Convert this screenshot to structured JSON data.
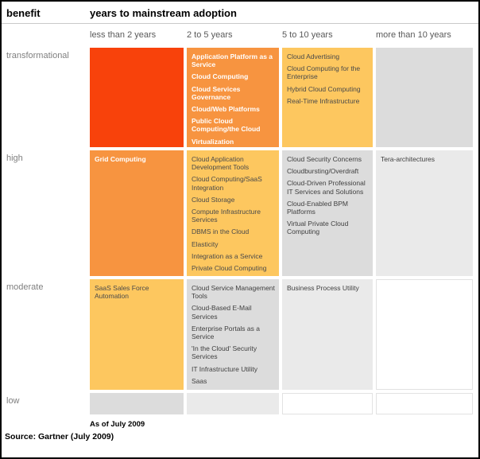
{
  "header": {
    "benefit_label": "benefit",
    "title": "years to mainstream adoption"
  },
  "footer": {
    "as_of": "As of July 2009",
    "source": "Source: Gartner (July 2009)"
  },
  "palette": {
    "red": {
      "bg": "#F8420B"
    },
    "orange": {
      "bg": "#F79440",
      "text": "#FFFFFF",
      "bold": true
    },
    "yellow": {
      "bg": "#FDC75F",
      "text": "#4A4A4A"
    },
    "gray": {
      "bg": "#DCDCDC",
      "text": "#3F3F3F"
    },
    "lightgray": {
      "bg": "#EAEAEA",
      "text": "#3F3F3F"
    },
    "white": {
      "bg": "#FFFFFF",
      "text": "#3F3F3F",
      "border": "#E2E2E2"
    }
  },
  "chart_data": {
    "type": "heatmap",
    "title": "years to mainstream adoption",
    "x_axis_label": "years to mainstream adoption",
    "y_axis_label": "benefit",
    "x_categories": [
      "less than 2 years",
      "2 to 5 years",
      "5 to 10 years",
      "more than 10 years"
    ],
    "y_categories": [
      "transformational",
      "high",
      "moderate",
      "low"
    ],
    "legend": "none",
    "cells": [
      [
        {
          "tone": "red",
          "items": []
        },
        {
          "tone": "orange",
          "items": [
            "Application Platform as a Service",
            "Cloud Computing",
            "Cloud Services Governance",
            "Cloud/Web Platforms",
            "Public Cloud Computing/the Cloud",
            "Virtualization"
          ]
        },
        {
          "tone": "yellow",
          "items": [
            "Cloud Advertising",
            "Cloud Computing for the Enterprise",
            "Hybrid Cloud Computing",
            "Real-Time Infrastructure"
          ]
        },
        {
          "tone": "gray",
          "items": []
        }
      ],
      [
        {
          "tone": "orange",
          "items": [
            "Grid Computing"
          ]
        },
        {
          "tone": "yellow",
          "items": [
            "Cloud Application Development Tools",
            "Cloud Computing/SaaS Integration",
            "Cloud Storage",
            "Compute Infrastructure Services",
            "DBMS in the Cloud",
            "Elasticity",
            "Integration as a Service",
            "Private Cloud Computing"
          ]
        },
        {
          "tone": "gray",
          "items": [
            "Cloud Security Concerns",
            "Cloudbursting/Overdraft",
            "Cloud-Driven Professional IT Services and Solutions",
            "Cloud-Enabled BPM Platforms",
            "Virtual Private Cloud Computing"
          ]
        },
        {
          "tone": "lightgray",
          "items": [
            "Tera-architectures"
          ]
        }
      ],
      [
        {
          "tone": "yellow",
          "items": [
            "SaaS Sales Force Automation"
          ]
        },
        {
          "tone": "gray",
          "items": [
            "Cloud Service Management Tools",
            "Cloud-Based E-Mail Services",
            "Enterprise Portals as a Service",
            "'In the Cloud' Security Services",
            "IT Infrastructure Utility",
            "Saas"
          ]
        },
        {
          "tone": "lightgray",
          "items": [
            "Business Process Utility"
          ]
        },
        {
          "tone": "white",
          "items": []
        }
      ],
      [
        {
          "tone": "gray",
          "items": []
        },
        {
          "tone": "lightgray",
          "items": []
        },
        {
          "tone": "white",
          "items": []
        },
        {
          "tone": "white",
          "items": []
        }
      ]
    ]
  }
}
